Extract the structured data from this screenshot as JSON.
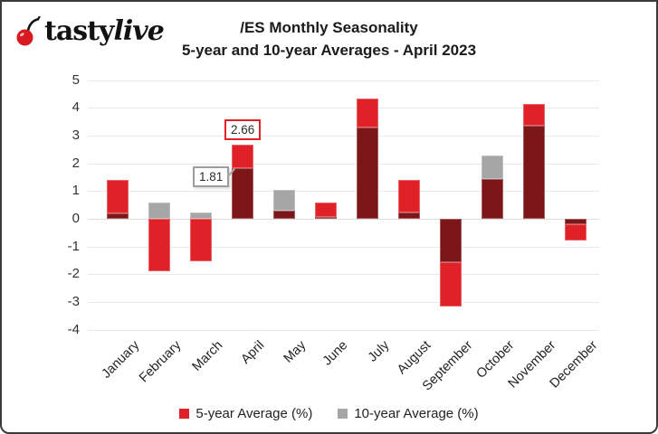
{
  "logo": {
    "brand_part1": "tasty",
    "brand_part2": "live",
    "cherry_color": "#d8191f"
  },
  "title": {
    "line1": "/ES Monthly Seasonality",
    "line2": "5-year and 10-year Averages  - April 2023"
  },
  "legend": [
    {
      "label": "5-year Average (%)",
      "color": "#e02127"
    },
    {
      "label": "10-year Average (%)",
      "color": "#a6a6a6"
    }
  ],
  "chart_data": {
    "type": "bar",
    "title": "/ES Monthly Seasonality",
    "subtitle": "5-year and 10-year Averages  - April 2023",
    "categories": [
      "January",
      "February",
      "March",
      "April",
      "May",
      "June",
      "July",
      "August",
      "September",
      "October",
      "November",
      "December"
    ],
    "series": [
      {
        "name": "5-year Average (%)",
        "color": "#e02127",
        "values": [
          1.4,
          -1.9,
          -1.54,
          2.66,
          0.28,
          0.6,
          4.35,
          1.4,
          -3.15,
          1.45,
          4.15,
          -0.78
        ]
      },
      {
        "name": "10-year Average (%)",
        "color": "#a6a6a6",
        "values": [
          0.2,
          0.6,
          0.22,
          1.81,
          1.05,
          0.07,
          3.3,
          0.22,
          -1.58,
          2.28,
          3.35,
          -0.2
        ]
      }
    ],
    "overlap_color": "#7d1619",
    "ylim": [
      -4,
      5
    ],
    "ytick_step": 1,
    "yticks": [
      5,
      4,
      3,
      2,
      1,
      0,
      -1,
      -2,
      -3,
      -4
    ],
    "grid": true,
    "xlabel": "",
    "ylabel": "",
    "xlabel_rotation": -45,
    "legend_position": "bottom",
    "annotations": [
      {
        "text": "2.66",
        "month": "April",
        "series": "5-year",
        "style": "red"
      },
      {
        "text": "1.81",
        "month": "April",
        "series": "10-year",
        "style": "gray"
      }
    ]
  }
}
